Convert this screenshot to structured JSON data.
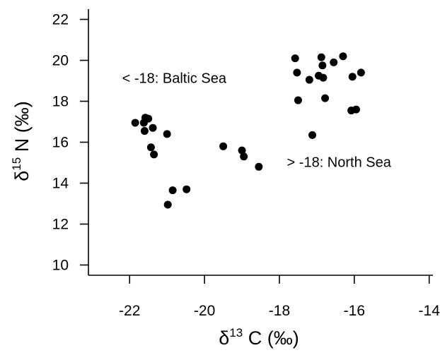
{
  "chart_data": {
    "type": "scatter",
    "xlabel": {
      "base": "δ",
      "sup": "13",
      "rest": " C (‰)"
    },
    "ylabel": {
      "base": "δ",
      "sup": "15",
      "rest": " N (‰)"
    },
    "xlim": [
      -23.1,
      -13.9
    ],
    "ylim": [
      9.5,
      22.5
    ],
    "xticks": [
      -22,
      -20,
      -18,
      -16,
      -14
    ],
    "yticks": [
      10,
      12,
      14,
      16,
      18,
      20,
      22
    ],
    "xtick_labels": [
      "-22",
      "-20",
      "-18",
      "-16",
      "-14"
    ],
    "ytick_labels": [
      "10",
      "12",
      "14",
      "16",
      "18",
      "20",
      "22"
    ],
    "grid": false,
    "annotations": [
      {
        "text": "< -18: Baltic Sea",
        "x": -22.2,
        "y": 18.9
      },
      {
        "text": "> -18: North Sea",
        "x": -17.8,
        "y": 14.8
      }
    ],
    "points": [
      {
        "x": -21.85,
        "y": 16.95
      },
      {
        "x": -21.62,
        "y": 16.95
      },
      {
        "x": -21.58,
        "y": 17.2
      },
      {
        "x": -21.5,
        "y": 17.15
      },
      {
        "x": -21.6,
        "y": 16.55
      },
      {
        "x": -21.38,
        "y": 16.7
      },
      {
        "x": -21.0,
        "y": 16.4
      },
      {
        "x": -21.43,
        "y": 15.75
      },
      {
        "x": -21.35,
        "y": 15.4
      },
      {
        "x": -20.85,
        "y": 13.65
      },
      {
        "x": -20.48,
        "y": 13.7
      },
      {
        "x": -20.98,
        "y": 12.95
      },
      {
        "x": -19.5,
        "y": 15.8
      },
      {
        "x": -19.0,
        "y": 15.6
      },
      {
        "x": -18.95,
        "y": 15.3
      },
      {
        "x": -18.55,
        "y": 14.8
      },
      {
        "x": -17.58,
        "y": 20.1
      },
      {
        "x": -17.53,
        "y": 19.4
      },
      {
        "x": -17.5,
        "y": 18.05
      },
      {
        "x": -17.2,
        "y": 19.05
      },
      {
        "x": -17.12,
        "y": 16.35
      },
      {
        "x": -16.88,
        "y": 20.15
      },
      {
        "x": -16.85,
        "y": 19.75
      },
      {
        "x": -16.95,
        "y": 19.25
      },
      {
        "x": -16.83,
        "y": 19.15
      },
      {
        "x": -16.78,
        "y": 18.15
      },
      {
        "x": -16.55,
        "y": 19.9
      },
      {
        "x": -16.3,
        "y": 20.2
      },
      {
        "x": -16.05,
        "y": 19.2
      },
      {
        "x": -15.82,
        "y": 19.4
      },
      {
        "x": -16.08,
        "y": 17.55
      },
      {
        "x": -15.95,
        "y": 17.6
      }
    ]
  }
}
